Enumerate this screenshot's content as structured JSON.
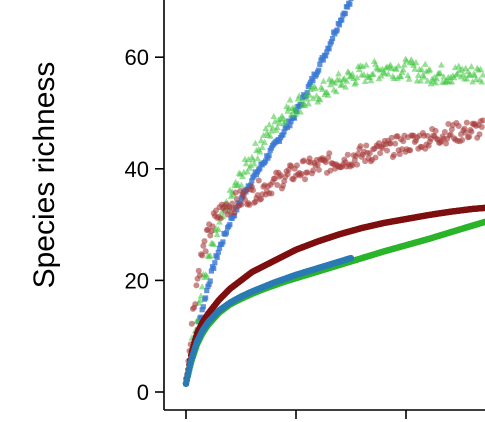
{
  "chart_data": {
    "type": "scatter",
    "title": "",
    "xlabel": "",
    "ylabel": "Species richness",
    "ylim": [
      0,
      70
    ],
    "yticks": [
      {
        "value": 0,
        "label": "0"
      },
      {
        "value": 20,
        "label": "20"
      },
      {
        "value": 40,
        "label": "40"
      },
      {
        "value": 60,
        "label": "60"
      }
    ],
    "xticks_unlabeled": [
      1,
      2,
      3
    ],
    "xlim": [
      0.82,
      3.72
    ],
    "grid": false,
    "legend": "none",
    "series": [
      {
        "kind": "points",
        "marker": "square",
        "color": "#3a78d4",
        "x": [
          1.0,
          1.05,
          1.1,
          1.15,
          1.2,
          1.25,
          1.3,
          1.35,
          1.4,
          1.45,
          1.5,
          1.55,
          1.6,
          1.65,
          1.7,
          1.75,
          1.8,
          1.85,
          1.9,
          1.95,
          2.0,
          2.05,
          2.1,
          2.15,
          2.2,
          2.25,
          2.3,
          2.35,
          2.4,
          2.45,
          2.5
        ],
        "y": [
          1.5,
          6.5,
          11,
          15,
          19,
          22.5,
          25.5,
          28,
          30.5,
          32.5,
          34.5,
          36.5,
          38,
          39.5,
          41,
          42.5,
          44,
          45.5,
          47,
          48.5,
          50,
          52,
          54,
          56,
          58,
          60,
          62,
          64.5,
          66.5,
          68.5,
          70
        ]
      },
      {
        "kind": "points",
        "marker": "triangle",
        "color": "#3fc63f",
        "x": [
          1.0,
          1.05,
          1.1,
          1.15,
          1.2,
          1.25,
          1.3,
          1.35,
          1.4,
          1.45,
          1.5,
          1.55,
          1.6,
          1.65,
          1.7,
          1.75,
          1.8,
          1.85,
          1.9,
          1.95,
          2.0,
          2.1,
          2.2,
          2.3,
          2.4,
          2.5,
          2.6,
          2.7,
          2.8,
          2.9,
          3.0,
          3.1,
          3.2,
          3.3,
          3.4,
          3.5,
          3.6,
          3.7
        ],
        "y": [
          1.5,
          8,
          14,
          19,
          23,
          26.5,
          29.5,
          32,
          34.5,
          36.5,
          38.5,
          40.5,
          42,
          43.5,
          45,
          46.5,
          48,
          49,
          50,
          51,
          51.5,
          52.5,
          53.5,
          54.5,
          55.5,
          56.5,
          57,
          57.5,
          58,
          58,
          58,
          57.5,
          57,
          57,
          57,
          57,
          57,
          57
        ]
      },
      {
        "kind": "points",
        "marker": "circle",
        "color": "#a83c3c",
        "x": [
          1.0,
          1.05,
          1.1,
          1.15,
          1.2,
          1.25,
          1.3,
          1.35,
          1.4,
          1.45,
          1.5,
          1.6,
          1.7,
          1.8,
          1.9,
          2.0,
          2.1,
          2.2,
          2.3,
          2.4,
          2.5,
          2.6,
          2.7,
          2.8,
          2.9,
          3.0,
          3.1,
          3.2,
          3.3,
          3.4,
          3.5,
          3.6,
          3.7
        ],
        "y": [
          1.5,
          12,
          20,
          25,
          28,
          30.5,
          32,
          33,
          33.5,
          34,
          34.5,
          35.5,
          36.5,
          37.5,
          38.5,
          39.5,
          40,
          40.5,
          41,
          41.5,
          42,
          42.5,
          43,
          43.5,
          44,
          44.5,
          45,
          45.5,
          46,
          46.5,
          46.5,
          47,
          47
        ]
      },
      {
        "kind": "curve",
        "color": "#7f0f0f",
        "x": [
          1.0,
          1.05,
          1.1,
          1.15,
          1.2,
          1.3,
          1.4,
          1.5,
          1.6,
          1.7,
          1.8,
          1.9,
          2.0,
          2.2,
          2.4,
          2.6,
          2.8,
          3.0,
          3.2,
          3.4,
          3.6,
          3.72
        ],
        "y": [
          1.5,
          7,
          10.5,
          12.5,
          14,
          16.5,
          18.5,
          20,
          21.5,
          22.5,
          23.5,
          24.5,
          25.5,
          27,
          28.3,
          29.4,
          30.3,
          31,
          31.7,
          32.3,
          32.8,
          33
        ]
      },
      {
        "kind": "curve",
        "color": "#2ab42a",
        "x": [
          1.0,
          1.05,
          1.1,
          1.15,
          1.2,
          1.3,
          1.4,
          1.5,
          1.6,
          1.7,
          1.8,
          1.9,
          2.0,
          2.2,
          2.4,
          2.6,
          2.8,
          3.0,
          3.2,
          3.4,
          3.6,
          3.72
        ],
        "y": [
          1.5,
          5.5,
          8.5,
          10.5,
          12,
          14.2,
          15.7,
          16.7,
          17.6,
          18.4,
          19.1,
          19.8,
          20.4,
          21.6,
          22.8,
          24,
          25.2,
          26.3,
          27.4,
          28.6,
          29.8,
          30.5
        ]
      },
      {
        "kind": "curve",
        "color": "#2a7ab4",
        "x": [
          1.0,
          1.05,
          1.1,
          1.15,
          1.2,
          1.3,
          1.4,
          1.5,
          1.6,
          1.7,
          1.8,
          1.9,
          2.0,
          2.1,
          2.2,
          2.3,
          2.4,
          2.5
        ],
        "y": [
          1.5,
          6,
          9,
          11,
          12.5,
          14.6,
          16,
          17.1,
          18,
          18.8,
          19.6,
          20.3,
          21,
          21.6,
          22.2,
          22.8,
          23.4,
          24
        ]
      }
    ]
  }
}
